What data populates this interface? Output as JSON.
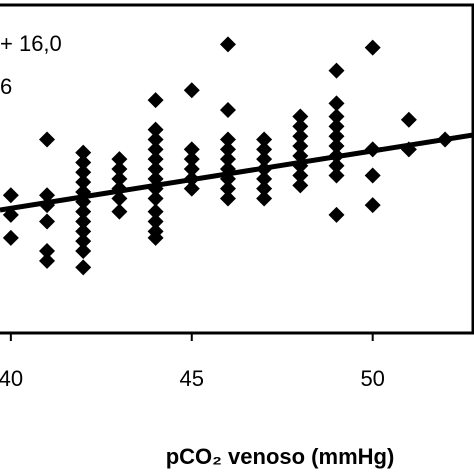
{
  "chart_data": {
    "type": "scatter",
    "annotations": [
      "+ 16,0",
      "6"
    ],
    "x_label": "pCO₂ venoso (mmHg)",
    "xlim": [
      39.7,
      52.8
    ],
    "ylim": [
      0,
      100
    ],
    "xticks": [
      40,
      45,
      50
    ],
    "color": "#000000",
    "x": [
      40,
      40,
      40,
      41,
      41,
      41,
      41,
      41,
      41,
      42,
      42,
      42,
      42,
      42,
      42,
      42,
      42,
      42,
      42,
      42,
      42,
      43,
      43,
      43,
      43,
      43,
      43,
      44,
      44,
      44,
      44,
      44,
      44,
      44,
      44,
      44,
      44,
      44,
      44,
      44,
      45,
      45,
      45,
      45,
      45,
      45,
      46,
      46,
      46,
      46,
      46,
      46,
      46,
      46,
      46,
      47,
      47,
      47,
      47,
      47,
      47,
      47,
      48,
      48,
      48,
      48,
      48,
      48,
      48,
      48,
      49,
      49,
      49,
      49,
      49,
      49,
      49,
      49,
      49,
      49,
      50,
      50,
      50,
      50,
      51,
      51,
      52
    ],
    "values": [
      42,
      36,
      29,
      59,
      42,
      39,
      34,
      25,
      22,
      55,
      52,
      49,
      46,
      43,
      40,
      37,
      34,
      31,
      28,
      25,
      20,
      53,
      50,
      47,
      44,
      41,
      37,
      71,
      62,
      59,
      56,
      53,
      50,
      47,
      44,
      41,
      37,
      34,
      31,
      29,
      74,
      56,
      53,
      50,
      47,
      44,
      88,
      68,
      59,
      56,
      53,
      50,
      47,
      44,
      41,
      59,
      56,
      53,
      50,
      47,
      44,
      41,
      66,
      63,
      60,
      57,
      54,
      51,
      48,
      45,
      80,
      70,
      66,
      63,
      60,
      57,
      54,
      51,
      48,
      36,
      87,
      56,
      48,
      39,
      65,
      56,
      59
    ],
    "trend_line": {
      "x": [
        39.7,
        52.8
      ],
      "values": [
        37.5,
        60.4
      ]
    }
  }
}
